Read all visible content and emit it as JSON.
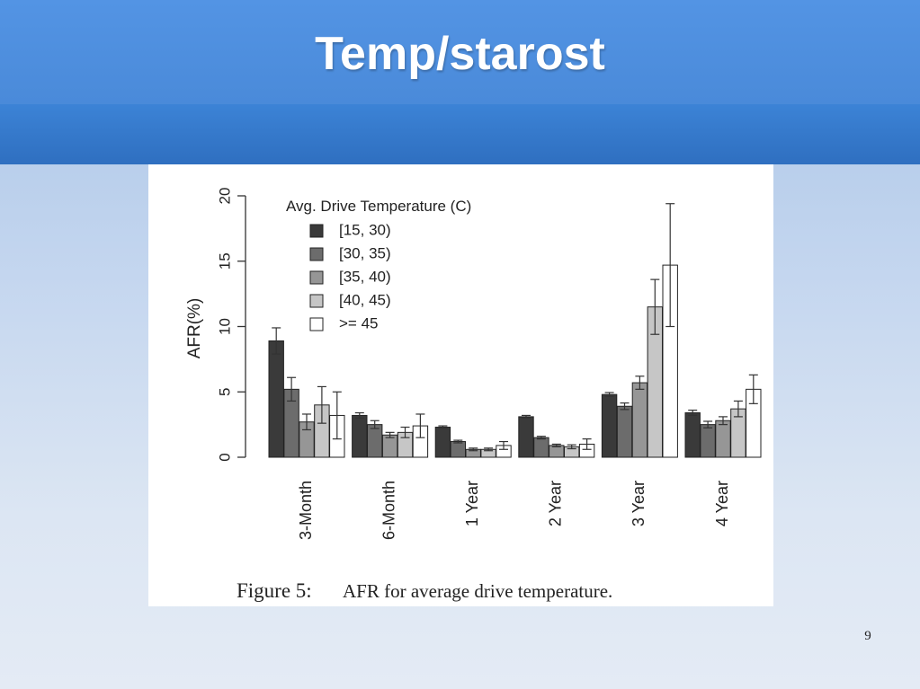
{
  "slide": {
    "title": "Temp/starost",
    "page_number": "9"
  },
  "colors": {
    "header_top": "#5394e4",
    "header_band": "#2f6fc0",
    "series": [
      "#3a3a3a",
      "#6c6c6c",
      "#969696",
      "#c6c6c6",
      "#ffffff"
    ]
  },
  "chart_data": {
    "type": "bar",
    "title": "",
    "xlabel": "",
    "ylabel": "AFR(%)",
    "ylim": [
      0,
      20
    ],
    "yticks": [
      "0",
      "5",
      "10",
      "15",
      "20"
    ],
    "grid": false,
    "legend_placement": "top-left",
    "legend_title": "Avg. Drive Temperature (C)",
    "categories": [
      "3-Month",
      "6-Month",
      "1 Year",
      "2 Year",
      "3 Year",
      "4 Year"
    ],
    "series": [
      {
        "name": "[15, 30)",
        "values": [
          8.9,
          3.2,
          2.3,
          3.1,
          4.8,
          3.4
        ],
        "err": [
          1.0,
          0.2,
          0.1,
          0.1,
          0.15,
          0.2
        ]
      },
      {
        "name": "[30, 35)",
        "values": [
          5.2,
          2.5,
          1.2,
          1.5,
          3.9,
          2.5
        ],
        "err": [
          0.9,
          0.3,
          0.1,
          0.1,
          0.25,
          0.25
        ]
      },
      {
        "name": "[35, 40)",
        "values": [
          2.7,
          1.7,
          0.6,
          0.9,
          5.7,
          2.8
        ],
        "err": [
          0.6,
          0.2,
          0.1,
          0.1,
          0.5,
          0.3
        ]
      },
      {
        "name": "[40, 45)",
        "values": [
          4.0,
          1.9,
          0.6,
          0.8,
          11.5,
          3.7
        ],
        "err": [
          1.4,
          0.4,
          0.1,
          0.15,
          2.1,
          0.6
        ]
      },
      {
        "name": ">= 45",
        "values": [
          3.2,
          2.4,
          0.9,
          1.0,
          14.7,
          5.2
        ],
        "err": [
          1.8,
          0.9,
          0.3,
          0.4,
          4.7,
          1.1
        ]
      }
    ],
    "caption": {
      "label": "Figure 5:",
      "text": "AFR for average drive temperature."
    }
  }
}
